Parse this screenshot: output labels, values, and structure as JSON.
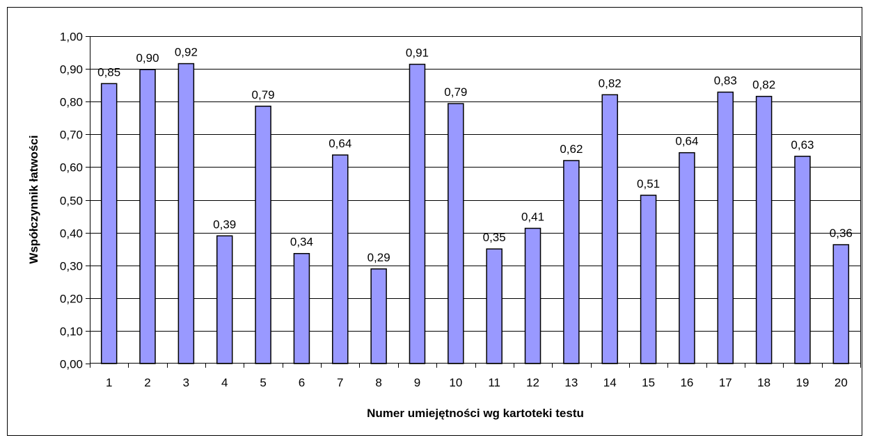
{
  "chart_data": {
    "type": "bar",
    "categories": [
      "1",
      "2",
      "3",
      "4",
      "5",
      "6",
      "7",
      "8",
      "9",
      "10",
      "11",
      "12",
      "13",
      "14",
      "15",
      "16",
      "17",
      "18",
      "19",
      "20"
    ],
    "values": [
      0.855,
      0.898,
      0.916,
      0.39,
      0.786,
      0.336,
      0.637,
      0.289,
      0.914,
      0.794,
      0.35,
      0.413,
      0.62,
      0.821,
      0.514,
      0.644,
      0.829,
      0.816,
      0.633,
      0.363
    ],
    "data_labels": [
      "0,85",
      "0,90",
      "0,92",
      "0,39",
      "0,79",
      "0,34",
      "0,64",
      "0,29",
      "0,91",
      "0,79",
      "0,35",
      "0,41",
      "0,62",
      "0,82",
      "0,51",
      "0,64",
      "0,83",
      "0,82",
      "0,63",
      "0,36"
    ],
    "xlabel": "Numer umiejętności wg kartoteki testu",
    "ylabel": "Współczynnik łatwości",
    "ylim": [
      0,
      1.0
    ],
    "yticks": [
      "0,00",
      "0,10",
      "0,20",
      "0,30",
      "0,40",
      "0,50",
      "0,60",
      "0,70",
      "0,80",
      "0,90",
      "1,00"
    ],
    "grid": true,
    "legend": "none",
    "bar_color": "#9999ff"
  }
}
